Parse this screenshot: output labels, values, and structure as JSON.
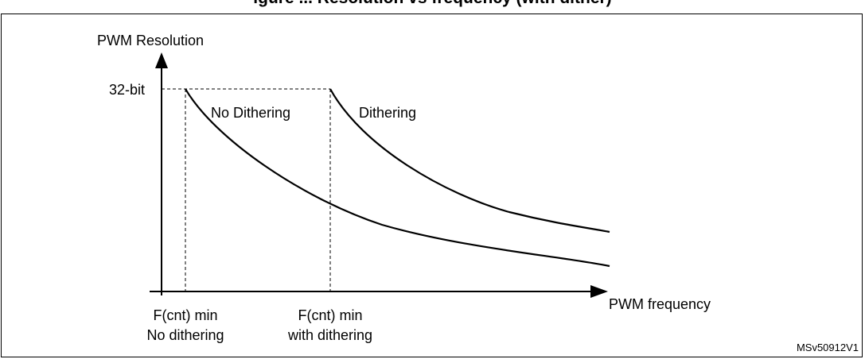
{
  "header": {
    "title_fragment": "igure ... Resolution vs frequency (with dither)"
  },
  "axes": {
    "y_label": "PWM Resolution",
    "x_label": "PWM frequency",
    "y_tick": "32-bit"
  },
  "curves": {
    "left_label": "No Dithering",
    "right_label": "Dithering"
  },
  "markers": {
    "left_line1": "F(cnt) min",
    "left_line2": "No dithering",
    "right_line1": "F(cnt) min",
    "right_line2": "with dithering"
  },
  "reference": "MSv50912V1"
}
